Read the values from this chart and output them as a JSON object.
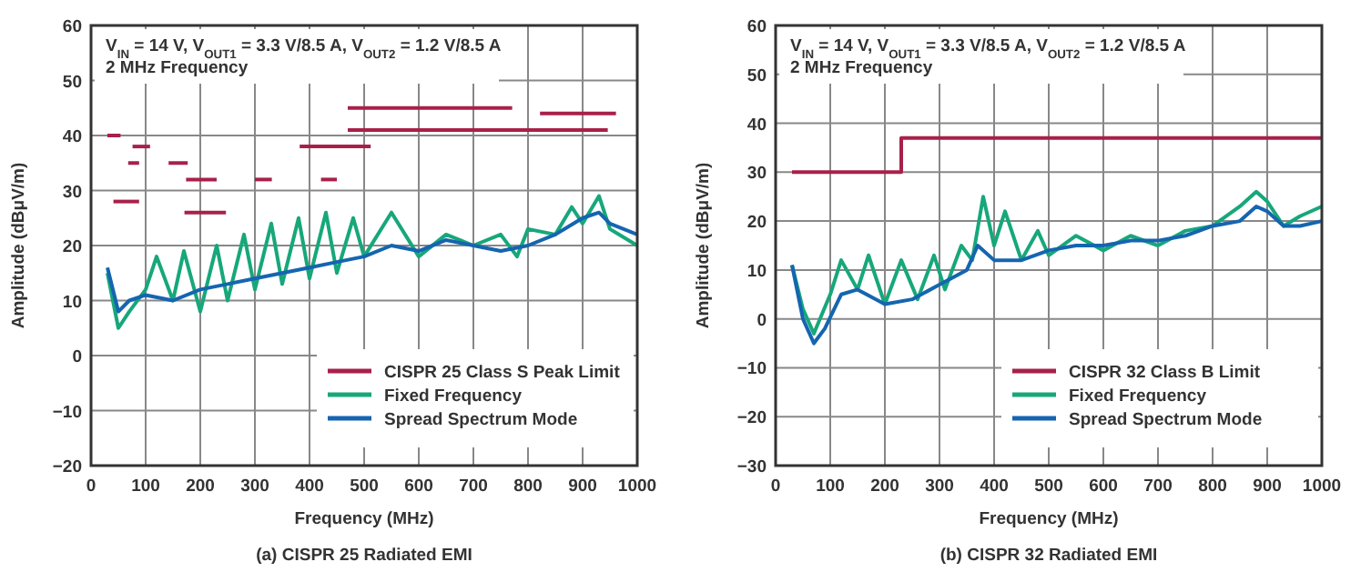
{
  "chart_data": [
    {
      "type": "line",
      "title": "(a) CISPR 25 Radiated EMI",
      "xlabel": "Frequency (MHz)",
      "ylabel": "Amplitude (dBμV/m)",
      "annotations": [
        "V$_{IN}$ = 14 V, V$_{OUT1}$ = 3.3 V/8.5 A, V$_{OUT2}$ = 1.2 V/8.5 A",
        "2 MHz Frequency"
      ],
      "xlim": [
        0,
        1000
      ],
      "xticks": [
        0,
        100,
        200,
        300,
        400,
        500,
        600,
        700,
        800,
        900,
        1000
      ],
      "ylim": [
        -20,
        60
      ],
      "yticks": [
        -20,
        -10,
        0,
        10,
        20,
        30,
        40,
        50,
        60
      ],
      "grid": true,
      "legend": "bottom right",
      "line_style": "solid",
      "marker": "none",
      "series": [
        {
          "name": "CISPR 25 Class S Peak Limit",
          "color": "#a8204a",
          "x": [
            30,
            54
          ],
          "values": [
            40,
            40
          ]
        },
        {
          "color": "#a8204a",
          "x": [
            41,
            88
          ],
          "values": [
            28,
            28
          ]
        },
        {
          "color": "#a8204a",
          "x": [
            76,
            108
          ],
          "values": [
            38,
            38
          ]
        },
        {
          "color": "#a8204a",
          "x": [
            68,
            88
          ],
          "values": [
            35,
            35
          ]
        },
        {
          "color": "#a8204a",
          "x": [
            142,
            177
          ],
          "values": [
            35,
            35
          ]
        },
        {
          "color": "#a8204a",
          "x": [
            174,
            230
          ],
          "values": [
            32,
            32
          ]
        },
        {
          "color": "#a8204a",
          "x": [
            171,
            247
          ],
          "values": [
            26,
            26
          ]
        },
        {
          "color": "#a8204a",
          "x": [
            300,
            331
          ],
          "values": [
            32,
            32
          ]
        },
        {
          "color": "#a8204a",
          "x": [
            421,
            450
          ],
          "values": [
            32,
            32
          ]
        },
        {
          "color": "#a8204a",
          "x": [
            382,
            512
          ],
          "values": [
            38,
            38
          ]
        },
        {
          "color": "#a8204a",
          "x": [
            470,
            771
          ],
          "values": [
            45,
            45
          ]
        },
        {
          "color": "#a8204a",
          "x": [
            470,
            946
          ],
          "values": [
            41,
            41
          ]
        },
        {
          "color": "#a8204a",
          "x": [
            822,
            961
          ],
          "values": [
            44,
            44
          ]
        },
        {
          "name": "Fixed Frequency",
          "color": "#17a77a",
          "x": [
            30,
            50,
            70,
            100,
            120,
            150,
            170,
            200,
            230,
            250,
            280,
            300,
            330,
            350,
            380,
            400,
            430,
            450,
            480,
            500,
            550,
            600,
            650,
            700,
            750,
            780,
            800,
            850,
            880,
            900,
            930,
            950,
            1000
          ],
          "values": [
            15,
            5,
            8,
            12,
            18,
            10,
            19,
            8,
            20,
            10,
            22,
            12,
            24,
            13,
            25,
            14,
            26,
            15,
            25,
            18,
            26,
            18,
            22,
            20,
            22,
            18,
            23,
            22,
            27,
            24,
            29,
            23,
            20
          ]
        },
        {
          "name": "Spread Spectrum Mode",
          "color": "#1565b0",
          "x": [
            30,
            50,
            70,
            100,
            150,
            200,
            250,
            300,
            350,
            400,
            450,
            500,
            550,
            600,
            650,
            700,
            750,
            800,
            850,
            900,
            930,
            950,
            1000
          ],
          "values": [
            16,
            8,
            10,
            11,
            10,
            12,
            13,
            14,
            15,
            16,
            17,
            18,
            20,
            19,
            21,
            20,
            19,
            20,
            22,
            25,
            26,
            24,
            22
          ]
        }
      ]
    },
    {
      "type": "line",
      "title": "(b) CISPR 32 Radiated EMI",
      "xlabel": "Frequency (MHz)",
      "ylabel": "Amplitude (dBμV/m)",
      "annotations": [
        "V$_{IN}$ = 14 V, V$_{OUT1}$ = 3.3 V/8.5 A, V$_{OUT2}$ = 1.2 V/8.5 A",
        "2 MHz Frequency"
      ],
      "xlim": [
        0,
        1000
      ],
      "xticks": [
        0,
        100,
        200,
        300,
        400,
        500,
        600,
        700,
        800,
        900,
        1000
      ],
      "ylim": [
        -30,
        60
      ],
      "yticks": [
        -30,
        -20,
        -10,
        0,
        10,
        20,
        30,
        40,
        50,
        60
      ],
      "grid": true,
      "legend": "bottom right",
      "line_style": "solid",
      "marker": "none",
      "series": [
        {
          "name": "CISPR 32 Class B Limit",
          "color": "#a8204a",
          "x": [
            30,
            230,
            230,
            1000
          ],
          "values": [
            30,
            30,
            37,
            37
          ]
        },
        {
          "name": "Fixed Frequency",
          "color": "#17a77a",
          "x": [
            30,
            50,
            70,
            100,
            120,
            150,
            170,
            200,
            230,
            260,
            290,
            310,
            340,
            360,
            380,
            400,
            420,
            450,
            480,
            500,
            550,
            600,
            650,
            700,
            750,
            800,
            850,
            880,
            900,
            930,
            960,
            1000
          ],
          "values": [
            11,
            2,
            -3,
            5,
            12,
            6,
            13,
            3,
            12,
            4,
            13,
            6,
            15,
            12,
            25,
            15,
            22,
            12,
            18,
            13,
            17,
            14,
            17,
            15,
            18,
            19,
            23,
            26,
            24,
            19,
            21,
            23
          ]
        },
        {
          "name": "Spread Spectrum Mode",
          "color": "#1565b0",
          "x": [
            30,
            50,
            70,
            90,
            120,
            150,
            200,
            250,
            300,
            350,
            370,
            400,
            450,
            500,
            550,
            600,
            650,
            700,
            750,
            800,
            850,
            880,
            900,
            930,
            960,
            1000
          ],
          "values": [
            11,
            0,
            -5,
            -2,
            5,
            6,
            3,
            4,
            7,
            10,
            15,
            12,
            12,
            14,
            15,
            15,
            16,
            16,
            17,
            19,
            20,
            23,
            22,
            19,
            19,
            20
          ]
        }
      ]
    }
  ]
}
